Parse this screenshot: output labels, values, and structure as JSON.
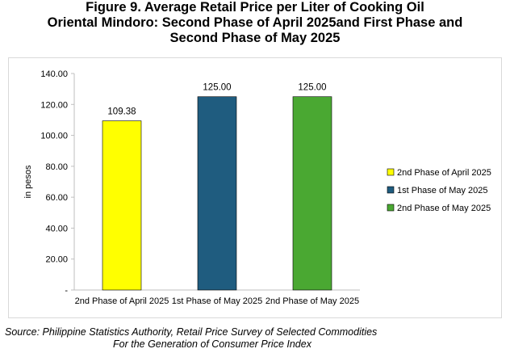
{
  "title_lines": [
    "Figure 9. Average Retail Price per Liter of Cooking Oil",
    "Oriental Mindoro: Second Phase of April 2025and First Phase and",
    "Second Phase of May 2025"
  ],
  "source_lines": [
    "Source: Philippine Statistics Authority, Retail Price Survey of Selected Commodities",
    "For the Generation of Consumer Price Index"
  ],
  "chart_data": {
    "type": "bar",
    "categories": [
      "2nd Phase of April 2025",
      "1st Phase of May 2025",
      "2nd Phase of May 2025"
    ],
    "values": [
      109.38,
      125.0,
      125.0
    ],
    "data_labels": [
      "109.38",
      "125.00",
      "125.00"
    ],
    "colors": [
      "#ffff00",
      "#1f5c7f",
      "#4aa832"
    ],
    "ylabel": "in pesos",
    "ylim": [
      0,
      140
    ],
    "yticks": [
      0,
      20,
      40,
      60,
      80,
      100,
      120,
      140
    ],
    "ytick_labels": [
      "-",
      "20.00",
      "40.00",
      "60.00",
      "80.00",
      "100.00",
      "120.00",
      "140.00"
    ],
    "grid": false,
    "legend_position": "right",
    "legend": [
      "2nd Phase of April 2025",
      "1st Phase of May 2025",
      "2nd Phase of May 2025"
    ]
  }
}
